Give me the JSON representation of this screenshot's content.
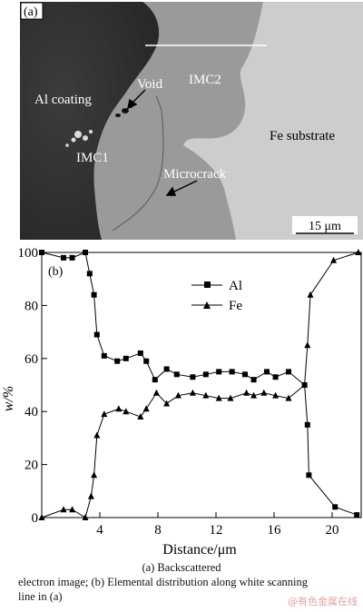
{
  "panel_a": {
    "label": "(a)",
    "labels": {
      "al_coating": "Al coating",
      "void": "Void",
      "imc2": "IMC2",
      "imc1": "IMC1",
      "fe_substrate": "Fe substrate",
      "microcrack": "Microcrack"
    },
    "scale_bar": "15 μm"
  },
  "chart_data": {
    "type": "line",
    "panel_label": "(b)",
    "xlabel": "Distance/μm",
    "ylabel": "w/%",
    "xlim": [
      0,
      22
    ],
    "ylim": [
      0,
      100
    ],
    "x_ticks": [
      4,
      8,
      12,
      16,
      20
    ],
    "y_ticks": [
      0,
      20,
      40,
      60,
      80,
      100
    ],
    "grid": false,
    "legend_position": "upper-center",
    "series": [
      {
        "name": "Al",
        "marker": "square",
        "x": [
          0,
          1.5,
          2.1,
          3.0,
          3.3,
          3.6,
          3.8,
          4.3,
          5.2,
          5.8,
          6.8,
          7.2,
          7.8,
          8.6,
          9.3,
          10.4,
          11.3,
          12.2,
          13.1,
          14.0,
          14.6,
          15.5,
          16.1,
          17.0,
          18.1,
          18.3,
          18.4,
          20.2,
          21.7
        ],
        "y": [
          100,
          98,
          98,
          100,
          92,
          84,
          69,
          61,
          59,
          60,
          62,
          59,
          52,
          56,
          54,
          53,
          54,
          55,
          55,
          54,
          52,
          55,
          53,
          55,
          50,
          35,
          16,
          4,
          1
        ]
      },
      {
        "name": "Fe",
        "marker": "triangle",
        "x": [
          0,
          1.5,
          2.1,
          3.0,
          3.4,
          3.6,
          3.8,
          4.3,
          5.3,
          5.8,
          6.8,
          7.2,
          7.9,
          8.6,
          9.4,
          10.4,
          11.3,
          12.2,
          13.0,
          14.1,
          14.6,
          15.3,
          16.1,
          17.0,
          18.1,
          18.3,
          18.5,
          20.1,
          21.8
        ],
        "y": [
          0,
          3,
          3,
          0,
          8,
          16,
          31,
          39,
          41,
          40,
          38,
          41,
          47,
          43,
          46,
          47,
          46,
          45,
          45,
          47,
          46,
          47,
          46,
          45,
          50,
          65,
          84,
          97,
          100
        ]
      }
    ]
  },
  "caption": {
    "line1": "(a) Backscattered",
    "line2": "electron image; (b) Elemental distribution along white scanning",
    "line3": "line in (a)"
  },
  "watermark": "@有色金属在线"
}
